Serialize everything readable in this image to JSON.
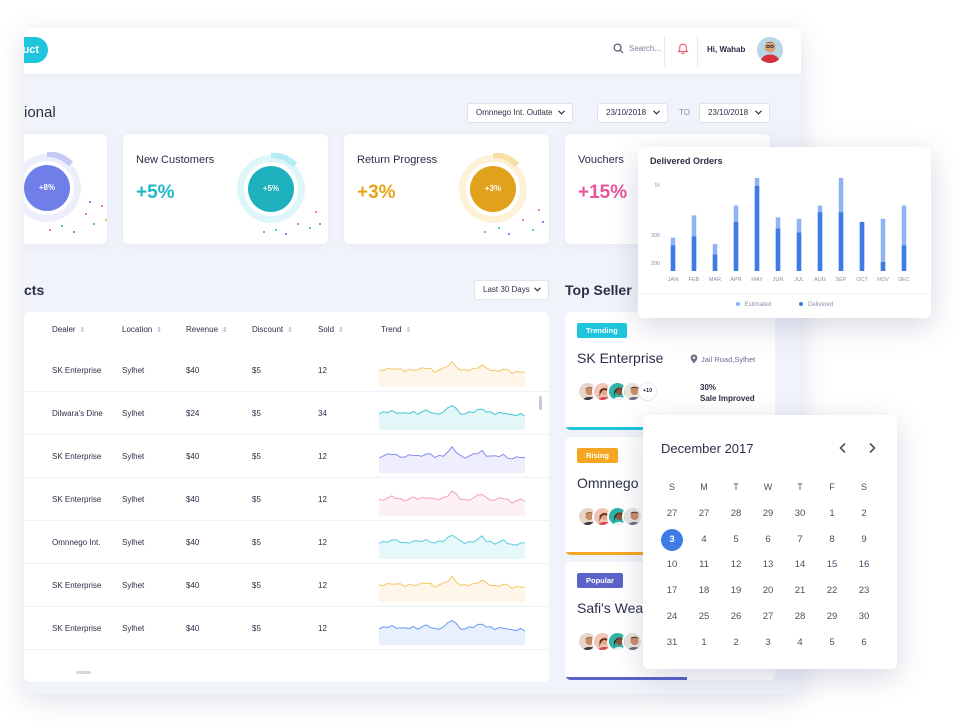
{
  "topbar": {
    "brand_fragment": "uct",
    "search_label": "Search...",
    "greeting": "Hi, Wahab",
    "icons": [
      "search-icon",
      "bell-icon"
    ]
  },
  "page": {
    "title_fragment": "ional",
    "outlet_select": "Omnnego Int. Outlate",
    "date_from": "23/10/2018",
    "to_label": "TO",
    "date_to": "23/10/2018"
  },
  "stats": [
    {
      "title": "",
      "value": "",
      "donut_label": "+8%",
      "color": "#5b6de0"
    },
    {
      "title": "New Customers",
      "value": "+5%",
      "donut_label": "+5%",
      "color": "#1fb8c9"
    },
    {
      "title": "Return Progress",
      "value": "+3%",
      "donut_label": "+3%",
      "color": "#e8a317"
    },
    {
      "title": "Vouchers",
      "value": "+15%",
      "donut_label": "",
      "color": "#e8559a"
    }
  ],
  "table": {
    "title_fragment": "cts",
    "range_select": "Last 30 Days",
    "columns": [
      "Dealer",
      "Location",
      "Revenue",
      "Discount",
      "Sold",
      "Trend"
    ],
    "rows": [
      {
        "dealer": "SK Enterprise",
        "location": "Sylhet",
        "revenue": "$40",
        "discount": "$5",
        "sold": "12",
        "trend_color": "#f5c66a"
      },
      {
        "dealer": "Dilwara's Dine",
        "location": "Sylhet",
        "revenue": "$24",
        "discount": "$5",
        "sold": "34",
        "trend_color": "#45c6d6"
      },
      {
        "dealer": "SK Enterprise",
        "location": "Sylhet",
        "revenue": "$40",
        "discount": "$5",
        "sold": "12",
        "trend_color": "#8a8ef0"
      },
      {
        "dealer": "SK Enterprise",
        "location": "Sylhet",
        "revenue": "$40",
        "discount": "$5",
        "sold": "12",
        "trend_color": "#f2a3b8"
      },
      {
        "dealer": "Omnnego Int.",
        "location": "Sylhet",
        "revenue": "$40",
        "discount": "$5",
        "sold": "12",
        "trend_color": "#58cfe0"
      },
      {
        "dealer": "SK Enterprise",
        "location": "Sylhet",
        "revenue": "$40",
        "discount": "$5",
        "sold": "12",
        "trend_color": "#f5c66a"
      },
      {
        "dealer": "SK Enterprise",
        "location": "Sylhet",
        "revenue": "$40",
        "discount": "$5",
        "sold": "12",
        "trend_color": "#6a9cf0"
      }
    ]
  },
  "top_seller": {
    "title": "Top Seller",
    "cards": [
      {
        "badge": "Trending",
        "badge_color": "#1fc5dd",
        "name": "SK Enterprise",
        "location": "Jail Road,Sylhet",
        "more": "+10",
        "stat_value": "30%",
        "stat_label": "Sale Improved",
        "bar_color": "#1fc5dd"
      },
      {
        "badge": "Rising",
        "badge_color": "#f5a623",
        "name": "Omnnego",
        "bar_color": "#f5a623"
      },
      {
        "badge": "Popular",
        "badge_color": "#5b63c9",
        "name": "Safi's Wea",
        "bar_color": "#5b63c9"
      }
    ]
  },
  "chart_data": {
    "type": "bar",
    "title": "Delivered Orders",
    "categories": [
      "JAN",
      "FEB",
      "MAR",
      "APR",
      "MAY",
      "JUN",
      "JUL",
      "AUG",
      "SEP",
      "OCT",
      "NOV",
      "DEC"
    ],
    "yticks": [
      "200",
      "300",
      "1k"
    ],
    "series": [
      {
        "name": "Estimated",
        "color": "#8fb3f5",
        "values": [
          355,
          592,
          287,
          696,
          990,
          571,
          555,
          696,
          990,
          522,
          555,
          696
        ]
      },
      {
        "name": "Delivered",
        "color": "#3d7be6",
        "values": [
          272,
          368,
          175,
          522,
          905,
          451,
          409,
          625,
          625,
          522,
          96,
          272
        ]
      }
    ],
    "legend_position": "bottom",
    "grid": false
  },
  "calendar": {
    "title": "December 2017",
    "weekdays": [
      "S",
      "M",
      "T",
      "W",
      "T",
      "F",
      "S"
    ],
    "days": [
      [
        "27",
        "27",
        "28",
        "29",
        "30",
        "1",
        "2"
      ],
      [
        "3",
        "4",
        "5",
        "6",
        "7",
        "8",
        "9"
      ],
      [
        "10",
        "11",
        "12",
        "13",
        "14",
        "15",
        "16"
      ],
      [
        "17",
        "18",
        "19",
        "20",
        "21",
        "22",
        "23"
      ],
      [
        "24",
        "25",
        "26",
        "27",
        "28",
        "29",
        "30"
      ],
      [
        "31",
        "1",
        "2",
        "3",
        "4",
        "5",
        "6"
      ]
    ],
    "selected": "3",
    "accent": "#3d7be6"
  }
}
